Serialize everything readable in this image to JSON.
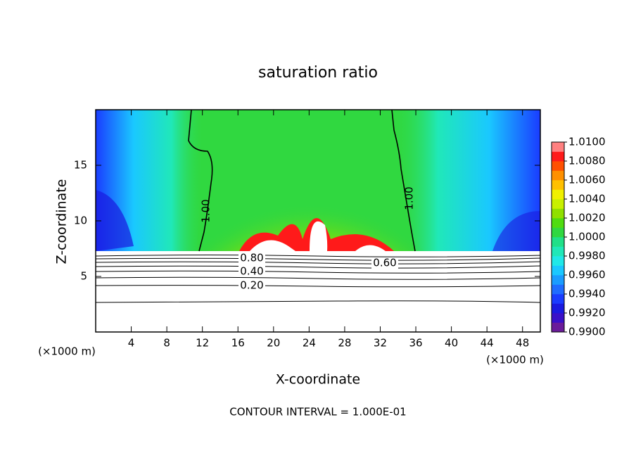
{
  "chart_data": {
    "type": "contour",
    "title": "saturation ratio",
    "x_label": "X-coordinate",
    "y_label": "Z-coordinate",
    "y_unit_label": "(×1000 m)",
    "x_unit_label": "(×1000 m)",
    "footnote": "CONTOUR INTERVAL = 1.000E-01",
    "xlim": [
      0,
      50
    ],
    "xticks": [
      4,
      8,
      12,
      16,
      20,
      24,
      28,
      32,
      36,
      40,
      44,
      48
    ],
    "ylim": [
      0,
      20
    ],
    "yticks": [
      5,
      10,
      15
    ],
    "colorbar": {
      "lim": [
        0.99,
        1.01
      ],
      "ticks": [
        {
          "value": 0.99,
          "label": "0.9900"
        },
        {
          "value": 0.992,
          "label": "0.9920"
        },
        {
          "value": 0.994,
          "label": "0.9940"
        },
        {
          "value": 0.996,
          "label": "0.9960"
        },
        {
          "value": 0.998,
          "label": "0.9980"
        },
        {
          "value": 1.0,
          "label": "1.0000"
        },
        {
          "value": 1.002,
          "label": "1.0020"
        },
        {
          "value": 1.004,
          "label": "1.0040"
        },
        {
          "value": 1.006,
          "label": "1.0060"
        },
        {
          "value": 1.008,
          "label": "1.0080"
        },
        {
          "value": 1.01,
          "label": "1.0100"
        }
      ],
      "colors": [
        "#6a1b9a",
        "#3a10c8",
        "#1a1ae0",
        "#1a3cff",
        "#1f6cff",
        "#1a9cff",
        "#1ac8ff",
        "#20e8e8",
        "#20e8b8",
        "#20e088",
        "#30d840",
        "#50dc10",
        "#90e000",
        "#c8f000",
        "#f0f000",
        "#ffc000",
        "#ff9000",
        "#ff5000",
        "#ff1a1a",
        "#ff8080"
      ]
    },
    "contour_labels": [
      {
        "value": 1.0,
        "label": "1.00"
      },
      {
        "value": 1.0,
        "label": "1.00"
      },
      {
        "value": 0.8,
        "label": "0.80"
      },
      {
        "value": 0.6,
        "label": "0.60"
      },
      {
        "value": 0.4,
        "label": "0.40"
      },
      {
        "value": 0.2,
        "label": "0.20"
      }
    ]
  }
}
